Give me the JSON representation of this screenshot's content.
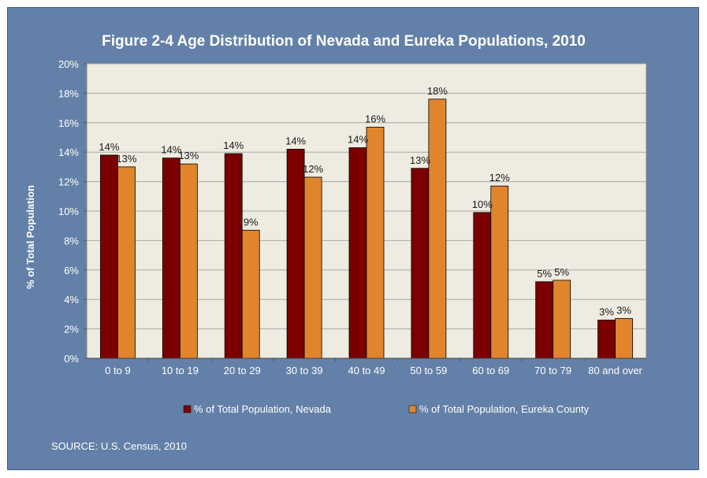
{
  "chart_data": {
    "type": "bar",
    "title": "Figure 2-4 Age Distribution of Nevada and Eureka Populations, 2010",
    "xlabel": "",
    "ylabel": "% of Total Population",
    "ylim": [
      0,
      20
    ],
    "yticks": [
      "0%",
      "2%",
      "4%",
      "6%",
      "8%",
      "10%",
      "12%",
      "14%",
      "16%",
      "18%",
      "20%"
    ],
    "categories": [
      "0 to 9",
      "10 to 19",
      "20 to 29",
      "30 to 39",
      "40 to 49",
      "50 to 59",
      "60 to 69",
      "70 to 79",
      "80 and over"
    ],
    "series": [
      {
        "name": "% of Total Population, Nevada",
        "color": "#7b0000",
        "values": [
          13.8,
          13.6,
          13.9,
          14.2,
          14.3,
          12.9,
          9.9,
          5.2,
          2.6
        ],
        "labels": [
          "14%",
          "14%",
          "14%",
          "14%",
          "14%",
          "13%",
          "10%",
          "5%",
          "3%"
        ]
      },
      {
        "name": "% of Total Population, Eureka County",
        "color": "#e0852c",
        "values": [
          13.0,
          13.2,
          8.7,
          12.3,
          15.7,
          17.6,
          11.7,
          5.3,
          2.7
        ],
        "labels": [
          "13%",
          "13%",
          "9%",
          "12%",
          "16%",
          "18%",
          "12%",
          "5%",
          "3%"
        ]
      }
    ],
    "grid": true,
    "legend_position": "bottom",
    "plot_background": "#eeebe0",
    "frame_background": "#6381a8"
  },
  "source": "SOURCE: U.S. Census, 2010"
}
